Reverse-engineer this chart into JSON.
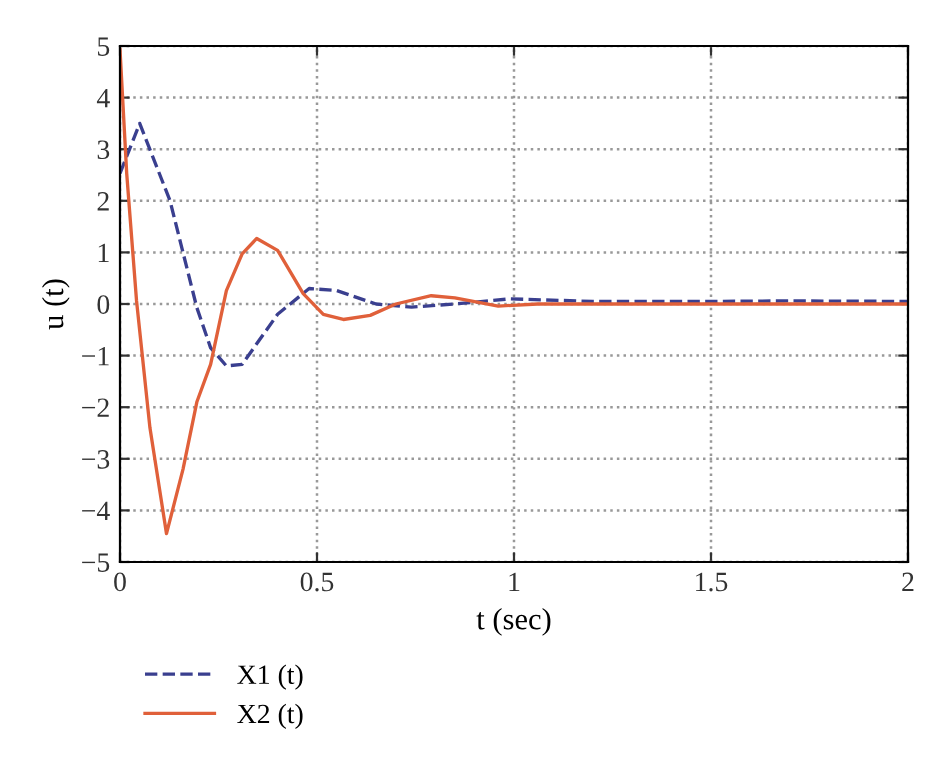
{
  "chart_data": {
    "type": "line",
    "xlabel": "t (sec)",
    "ylabel": "u (t)",
    "xlim": [
      0,
      2
    ],
    "ylim": [
      -5,
      5
    ],
    "xticks": [
      0,
      0.5,
      1,
      1.5,
      2
    ],
    "yticks": [
      -5,
      -4,
      -3,
      -2,
      -1,
      0,
      1,
      2,
      3,
      4,
      5
    ],
    "grid": true,
    "legend": "bottom",
    "series": [
      {
        "name": "X1 (t)",
        "color": "#3a3f8f",
        "line_style": "dashed",
        "x": [
          0,
          0.05,
          0.127,
          0.195,
          0.23,
          0.27,
          0.31,
          0.4,
          0.48,
          0.55,
          0.65,
          0.74,
          0.85,
          0.99,
          1.2,
          1.5,
          1.7,
          2
        ],
        "values": [
          2.53,
          3.5,
          2.0,
          -0.07,
          -0.85,
          -1.2,
          -1.17,
          -0.2,
          0.3,
          0.26,
          0,
          -0.06,
          0,
          0.1,
          0.05,
          0.05,
          0.06,
          0.05
        ]
      },
      {
        "name": "X2 (t)",
        "color": "#e0603a",
        "line_style": "solid",
        "x": [
          0,
          0.017,
          0.042,
          0.076,
          0.118,
          0.16,
          0.195,
          0.23,
          0.27,
          0.31,
          0.347,
          0.4,
          0.465,
          0.516,
          0.567,
          0.635,
          0.7,
          0.79,
          0.85,
          0.96,
          1.06,
          1.5,
          2
        ],
        "values": [
          4.93,
          2.53,
          0.06,
          -2.4,
          -4.45,
          -3.2,
          -1.9,
          -1.17,
          0.26,
          0.97,
          1.27,
          1.04,
          0.2,
          -0.2,
          -0.3,
          -0.22,
          0,
          0.16,
          0.12,
          -0.04,
          0,
          0,
          0
        ]
      }
    ]
  }
}
